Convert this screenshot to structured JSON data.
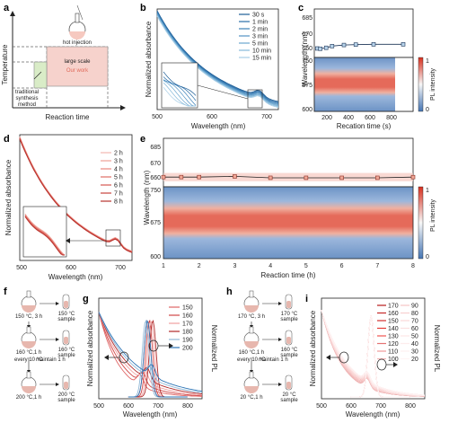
{
  "panels": {
    "a": {
      "label": "a",
      "ylabel": "Temperature",
      "xlabel": "Reaction time",
      "flask_label": "hot injection",
      "box_large": "large scale",
      "box_ourwork": "Our work",
      "traditional": [
        "traditional",
        "synthesis",
        "method"
      ]
    },
    "b": {
      "label": "b",
      "ylabel": "Normalized absorbance",
      "xlabel": "Wavelength (nm)",
      "xticks": [
        "500",
        "600",
        "700"
      ],
      "legend": [
        "30 s",
        "1 min",
        "2 min",
        "3 min",
        "5 min",
        "10 min",
        "15 min"
      ],
      "colors": [
        "#1d5d95",
        "#2a6da8",
        "#3b80b8",
        "#5293c4",
        "#6aa6cf",
        "#86b9da",
        "#a6cde6"
      ]
    },
    "c": {
      "label": "c",
      "ylabel": "Wavelength (nm)",
      "xlabel": "Recation time (s)",
      "top_yticks": [
        "685",
        "670",
        "660"
      ],
      "bottom_yticks": [
        "750",
        "675",
        "600"
      ],
      "xticks": [
        "200",
        "400",
        "600",
        "800"
      ],
      "cbar_label": "PL intensity",
      "cbar_ticks": [
        "1",
        "0"
      ]
    },
    "d": {
      "label": "d",
      "ylabel": "Normalized absorbance",
      "xlabel": "Wavelength (nm)",
      "xticks": [
        "500",
        "600",
        "700"
      ],
      "legend": [
        "2 h",
        "3 h",
        "4 h",
        "5 h",
        "6 h",
        "7 h",
        "8 h"
      ],
      "colors": [
        "#f3b8b0",
        "#ee9f96",
        "#e8877d",
        "#e06e66",
        "#d6574f",
        "#c8443d",
        "#b7322d"
      ]
    },
    "e": {
      "label": "e",
      "ylabel": "Wavelength (nm)",
      "xlabel": "Reaction time (h)",
      "top_yticks": [
        "685",
        "670",
        "660"
      ],
      "bottom_yticks": [
        "750",
        "675",
        "600"
      ],
      "xticks": [
        "1",
        "2",
        "3",
        "4",
        "5",
        "6",
        "7",
        "8"
      ],
      "cbar_label": "PL intensity",
      "cbar_ticks": [
        "1",
        "0"
      ]
    },
    "f": {
      "label": "f",
      "steps": [
        "150 °C, 3 h",
        "160 °C,1 h",
        "200 °C,1 h"
      ],
      "samples": [
        "150 °C sample",
        "160 °C sample",
        "200 °C sample"
      ],
      "note_every": "every 10 °C",
      "note_maintain": "maintain 1 h"
    },
    "g": {
      "label": "g",
      "ylabel": "Normalized absorbance",
      "ylabel_right": "Normalized PL",
      "xlabel": "Wavelength (nm)",
      "xticks": [
        "500",
        "600",
        "700",
        "800"
      ],
      "legend": [
        "150",
        "160",
        "170",
        "180",
        "190",
        "200"
      ],
      "colors": [
        "#e06666",
        "#d04545",
        "#f0a0a0",
        "#b02828",
        "#8fb7d6",
        "#2d75b6"
      ]
    },
    "h": {
      "label": "h",
      "steps": [
        "170 °C, 3 h",
        "160 °C,1 h",
        "20 °C,1 h"
      ],
      "samples": [
        "170 °C sample",
        "160 °C sample",
        "20 °C sample"
      ],
      "note_every": "every 10 °C",
      "note_maintain": "maintain 1 h"
    },
    "i": {
      "label": "i",
      "ylabel": "Normalized absorbance",
      "ylabel_right": "Normalized PL",
      "xlabel": "Wavelength (nm)",
      "xticks": [
        "500",
        "600",
        "700",
        "800"
      ],
      "legend_left": [
        "170",
        "160",
        "150",
        "140",
        "130",
        "120",
        "110",
        "100"
      ],
      "legend_right": [
        "90",
        "80",
        "70",
        "60",
        "50",
        "40",
        "30",
        "20"
      ],
      "colors_left": [
        "#b71c1c",
        "#c62828",
        "#d32f2f",
        "#e53935",
        "#ef5350",
        "#e57373",
        "#ef9a9a",
        "#f4b6b6"
      ],
      "colors_right": [
        "#f6c5c5",
        "#f8d0d0",
        "#fad9d9",
        "#fbe0e0",
        "#fce6e6",
        "#fdecec",
        "#fef1f1",
        "#fff5f5"
      ]
    }
  },
  "chart_data": [
    {
      "type": "line",
      "panel": "b",
      "title": "",
      "xlabel": "Wavelength (nm)",
      "ylabel": "Normalized absorbance",
      "xlim": [
        500,
        720
      ],
      "series": [
        {
          "name": "30 s"
        },
        {
          "name": "1 min"
        },
        {
          "name": "2 min"
        },
        {
          "name": "3 min"
        },
        {
          "name": "5 min"
        },
        {
          "name": "10 min"
        },
        {
          "name": "15 min"
        }
      ]
    },
    {
      "type": "scatter",
      "panel": "c",
      "xlabel": "Recation time (s)",
      "ylabel": "Wavelength (nm)",
      "x": [
        30,
        60,
        120,
        180,
        300,
        420,
        600,
        900
      ],
      "y": [
        661.5,
        661.3,
        662.0,
        663.2,
        664.0,
        664.3,
        664.5,
        664.5
      ],
      "ylim_top": [
        655,
        690
      ],
      "ylim_bottom": [
        600,
        750
      ],
      "pl_peak_band": [
        665,
        690
      ]
    },
    {
      "type": "line",
      "panel": "d",
      "xlabel": "Wavelength (nm)",
      "ylabel": "Normalized absorbance",
      "xlim": [
        500,
        720
      ],
      "series": [
        {
          "name": "2 h"
        },
        {
          "name": "3 h"
        },
        {
          "name": "4 h"
        },
        {
          "name": "5 h"
        },
        {
          "name": "6 h"
        },
        {
          "name": "7 h"
        },
        {
          "name": "8 h"
        }
      ]
    },
    {
      "type": "scatter",
      "panel": "e",
      "xlabel": "Reaction time (h)",
      "ylabel": "Wavelength (nm)",
      "x": [
        1,
        1.5,
        2,
        3,
        4,
        5,
        6,
        7,
        8
      ],
      "y": [
        662.0,
        662.0,
        662.0,
        662.5,
        661.5,
        661.5,
        661.5,
        661.5,
        662.0
      ],
      "ylim_top": [
        655,
        690
      ],
      "ylim_bottom": [
        600,
        750
      ],
      "pl_peak_band": [
        665,
        690
      ]
    },
    {
      "type": "line",
      "panel": "g",
      "xlabel": "Wavelength (nm)",
      "ylabel": "Normalized absorbance",
      "xlim": [
        500,
        850
      ],
      "series": [
        {
          "name": "150"
        },
        {
          "name": "160"
        },
        {
          "name": "170"
        },
        {
          "name": "180"
        },
        {
          "name": "190"
        },
        {
          "name": "200"
        }
      ]
    },
    {
      "type": "line",
      "panel": "i",
      "xlabel": "Wavelength (nm)",
      "ylabel": "Normalized absorbance",
      "xlim": [
        500,
        850
      ],
      "series": [
        {
          "name": "170"
        },
        {
          "name": "160"
        },
        {
          "name": "150"
        },
        {
          "name": "140"
        },
        {
          "name": "130"
        },
        {
          "name": "120"
        },
        {
          "name": "110"
        },
        {
          "name": "100"
        },
        {
          "name": "90"
        },
        {
          "name": "80"
        },
        {
          "name": "70"
        },
        {
          "name": "60"
        },
        {
          "name": "50"
        },
        {
          "name": "40"
        },
        {
          "name": "30"
        },
        {
          "name": "20"
        }
      ]
    }
  ]
}
